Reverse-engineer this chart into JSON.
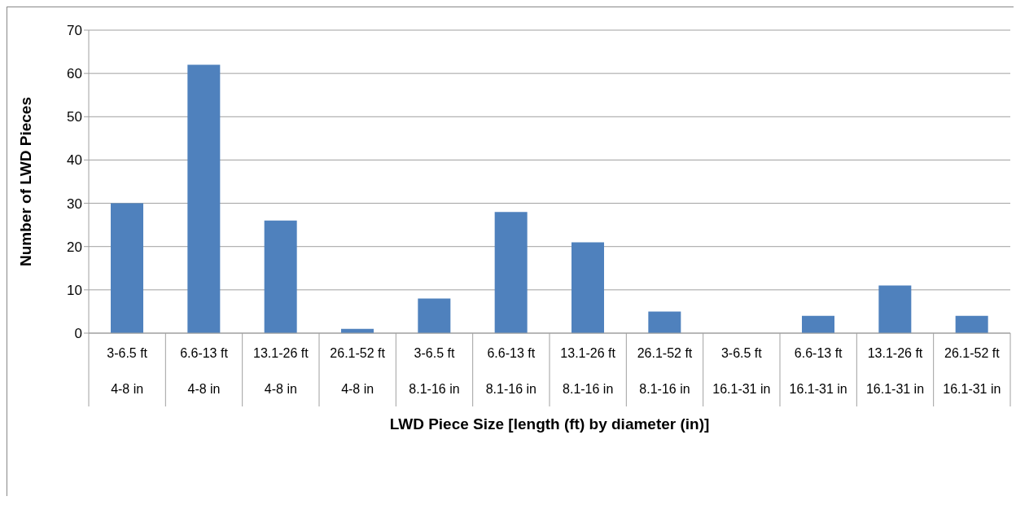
{
  "chart_data": {
    "type": "bar",
    "xlabel": "LWD Piece Size [length (ft) by diameter (in)]",
    "ylabel": "Number of LWD Pieces",
    "categories": [
      "3-6.5 ft\n4-8 in",
      "6.6-13 ft\n4-8 in",
      "13.1-26 ft\n4-8 in",
      "26.1-52 ft\n4-8 in",
      "3-6.5 ft\n8.1-16 in",
      "6.6-13 ft\n8.1-16 in",
      "13.1-26 ft\n8.1-16 in",
      "26.1-52 ft\n8.1-16 in",
      "3-6.5 ft\n16.1-31 in",
      "6.6-13 ft\n16.1-31 in",
      "13.1-26 ft\n16.1-31 in",
      "26.1-52 ft\n16.1-31 in"
    ],
    "values": [
      30,
      62,
      26,
      1,
      8,
      28,
      21,
      5,
      0,
      4,
      11,
      4
    ],
    "color": "#4f81bd",
    "ylim": [
      0,
      70
    ],
    "yticks": [
      0,
      10,
      20,
      30,
      40,
      50,
      60,
      70
    ],
    "grid": "y"
  }
}
